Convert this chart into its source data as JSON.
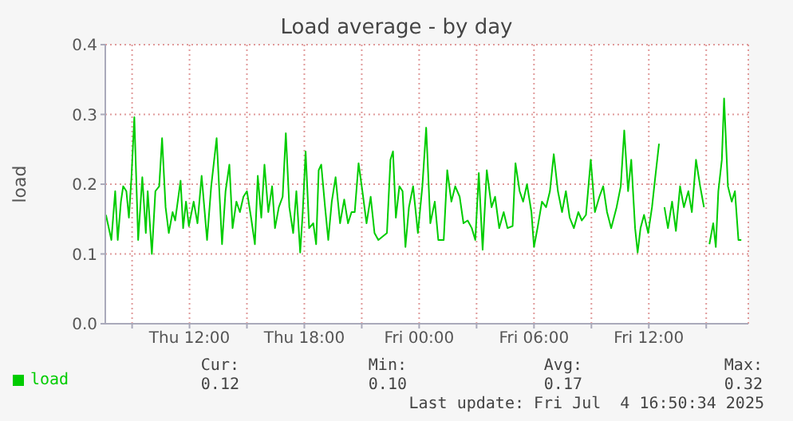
{
  "chart_data": {
    "type": "line",
    "title": "Load average - by day",
    "ylabel": "load",
    "x": [
      "2025-07-03T07:38",
      "2025-07-03T07:55",
      "2025-07-03T08:07",
      "2025-07-03T08:15",
      "2025-07-03T08:25",
      "2025-07-03T08:32",
      "2025-07-03T08:42",
      "2025-07-03T08:50",
      "2025-07-03T08:58",
      "2025-07-03T09:07",
      "2025-07-03T09:19",
      "2025-07-03T09:32",
      "2025-07-03T09:43",
      "2025-07-03T09:49",
      "2025-07-03T10:02",
      "2025-07-03T10:13",
      "2025-07-03T10:25",
      "2025-07-03T10:34",
      "2025-07-03T10:45",
      "2025-07-03T10:55",
      "2025-07-03T11:07",
      "2025-07-03T11:15",
      "2025-07-03T11:32",
      "2025-07-03T11:40",
      "2025-07-03T11:49",
      "2025-07-03T11:58",
      "2025-07-03T12:13",
      "2025-07-03T12:25",
      "2025-07-03T12:38",
      "2025-07-03T12:55",
      "2025-07-03T13:08",
      "2025-07-03T13:25",
      "2025-07-03T13:42",
      "2025-07-03T13:53",
      "2025-07-03T14:05",
      "2025-07-03T14:15",
      "2025-07-03T14:27",
      "2025-07-03T14:38",
      "2025-07-03T14:49",
      "2025-07-03T15:00",
      "2025-07-03T15:13",
      "2025-07-03T15:25",
      "2025-07-03T15:34",
      "2025-07-03T15:45",
      "2025-07-03T15:55",
      "2025-07-03T16:07",
      "2025-07-03T16:19",
      "2025-07-03T16:28",
      "2025-07-03T16:40",
      "2025-07-03T16:52",
      "2025-07-03T17:02",
      "2025-07-03T17:13",
      "2025-07-03T17:25",
      "2025-07-03T17:35",
      "2025-07-03T17:47",
      "2025-07-03T17:55",
      "2025-07-03T18:04",
      "2025-07-03T18:15",
      "2025-07-03T18:28",
      "2025-07-03T18:37",
      "2025-07-03T18:45",
      "2025-07-03T18:53",
      "2025-07-03T19:05",
      "2025-07-03T19:15",
      "2025-07-03T19:26",
      "2025-07-03T19:38",
      "2025-07-03T19:52",
      "2025-07-03T20:05",
      "2025-07-03T20:17",
      "2025-07-03T20:28",
      "2025-07-03T20:38",
      "2025-07-03T20:50",
      "2025-07-03T21:02",
      "2025-07-03T21:15",
      "2025-07-03T21:28",
      "2025-07-03T21:40",
      "2025-07-03T21:52",
      "2025-07-03T22:19",
      "2025-07-03T22:30",
      "2025-07-03T22:38",
      "2025-07-03T22:47",
      "2025-07-03T22:58",
      "2025-07-03T23:08",
      "2025-07-03T23:17",
      "2025-07-03T23:28",
      "2025-07-03T23:41",
      "2025-07-03T23:56",
      "2025-07-04T00:10",
      "2025-07-04T00:22",
      "2025-07-04T00:35",
      "2025-07-04T00:49",
      "2025-07-04T01:00",
      "2025-07-04T01:17",
      "2025-07-04T01:28",
      "2025-07-04T01:41",
      "2025-07-04T01:53",
      "2025-07-04T02:07",
      "2025-07-04T02:19",
      "2025-07-04T02:32",
      "2025-07-04T02:45",
      "2025-07-04T02:56",
      "2025-07-04T03:07",
      "2025-07-04T03:19",
      "2025-07-04T03:32",
      "2025-07-04T03:47",
      "2025-07-04T03:58",
      "2025-07-04T04:11",
      "2025-07-04T04:25",
      "2025-07-04T04:37",
      "2025-07-04T04:53",
      "2025-07-04T05:02",
      "2025-07-04T05:15",
      "2025-07-04T05:26",
      "2025-07-04T05:38",
      "2025-07-04T05:52",
      "2025-07-04T06:00",
      "2025-07-04T06:11",
      "2025-07-04T06:25",
      "2025-07-04T06:38",
      "2025-07-04T06:50",
      "2025-07-04T07:02",
      "2025-07-04T07:15",
      "2025-07-04T07:28",
      "2025-07-04T07:40",
      "2025-07-04T07:52",
      "2025-07-04T08:05",
      "2025-07-04T08:19",
      "2025-07-04T08:30",
      "2025-07-04T08:43",
      "2025-07-04T08:58",
      "2025-07-04T09:11",
      "2025-07-04T09:25",
      "2025-07-04T09:37",
      "2025-07-04T09:49",
      "2025-07-04T10:02",
      "2025-07-04T10:19",
      "2025-07-04T10:32",
      "2025-07-04T10:43",
      "2025-07-04T10:55",
      "2025-07-04T11:05",
      "2025-07-04T11:17",
      "2025-07-04T11:25",
      "2025-07-04T11:34",
      "2025-07-04T11:45",
      "2025-07-04T11:58",
      "2025-07-04T12:10",
      "2025-07-04T12:19",
      "2025-07-04T12:32",
      "2025-07-04T12:39",
      "2025-07-04T12:49",
      "2025-07-04T13:00",
      "2025-07-04T13:13",
      "2025-07-04T13:25",
      "2025-07-04T13:38",
      "2025-07-04T13:50",
      "2025-07-04T14:04",
      "2025-07-04T14:15",
      "2025-07-04T14:28",
      "2025-07-04T14:41",
      "2025-07-04T14:53",
      "2025-07-04T15:00",
      "2025-07-04T15:10",
      "2025-07-04T15:22",
      "2025-07-04T15:30",
      "2025-07-04T15:38",
      "2025-07-04T15:49",
      "2025-07-04T15:56",
      "2025-07-04T16:08",
      "2025-07-04T16:20",
      "2025-07-04T16:30",
      "2025-07-04T16:41",
      "2025-07-04T16:50"
    ],
    "series": [
      {
        "name": "load",
        "color": "#00cc00",
        "values": [
          0.156,
          0.12,
          0.19,
          0.12,
          0.175,
          0.197,
          0.19,
          0.152,
          0.21,
          0.296,
          0.12,
          0.21,
          0.13,
          0.19,
          0.1,
          0.19,
          0.197,
          0.266,
          0.167,
          0.13,
          0.16,
          0.148,
          0.205,
          0.137,
          0.175,
          0.14,
          0.175,
          0.144,
          0.212,
          0.12,
          0.197,
          0.266,
          0.114,
          0.19,
          0.228,
          0.137,
          0.175,
          0.16,
          0.182,
          0.19,
          0.152,
          0.114,
          0.212,
          0.152,
          0.228,
          0.16,
          0.197,
          0.137,
          0.167,
          0.182,
          0.273,
          0.167,
          0.13,
          0.19,
          0.102,
          0.16,
          0.247,
          0.137,
          0.144,
          0.114,
          0.22,
          0.228,
          0.167,
          0.12,
          0.175,
          0.21,
          0.144,
          0.178,
          0.144,
          0.16,
          0.16,
          0.23,
          0.19,
          0.144,
          0.182,
          0.13,
          0.12,
          0.13,
          0.235,
          0.247,
          0.152,
          0.197,
          0.19,
          0.11,
          0.167,
          0.197,
          0.13,
          0.197,
          0.281,
          0.144,
          0.175,
          0.12,
          0.12,
          0.22,
          0.175,
          0.197,
          0.182,
          0.144,
          0.148,
          0.137,
          0.12,
          0.216,
          0.106,
          0.22,
          0.167,
          0.182,
          0.137,
          0.16,
          0.137,
          0.14,
          0.23,
          0.19,
          0.175,
          0.2,
          0.16,
          0.11,
          0.137,
          0.175,
          0.167,
          0.19,
          0.243,
          0.19,
          0.16,
          0.19,
          0.152,
          0.137,
          0.16,
          0.148,
          0.156,
          0.235,
          0.16,
          0.182,
          0.197,
          0.16,
          0.137,
          0.167,
          0.197,
          0.277,
          0.19,
          0.235,
          0.137,
          0.102,
          0.137,
          0.156,
          0.13,
          0.167,
          0.205,
          0.258,
          null,
          0.167,
          0.137,
          0.175,
          0.133,
          0.197,
          0.167,
          0.19,
          0.16,
          0.235,
          0.197,
          0.167,
          null,
          0.114,
          0.144,
          0.11,
          0.19,
          0.235,
          0.323,
          0.197,
          0.175,
          0.19,
          0.12,
          0.12
        ]
      }
    ],
    "xlim": [
      "2025-07-03T07:36",
      "2025-07-04T17:12"
    ],
    "xticks": [
      {
        "value": "2025-07-03T09:00",
        "label": null
      },
      {
        "value": "2025-07-03T12:00",
        "label": "Thu 12:00"
      },
      {
        "value": "2025-07-03T15:00",
        "label": null
      },
      {
        "value": "2025-07-03T18:00",
        "label": "Thu 18:00"
      },
      {
        "value": "2025-07-03T21:00",
        "label": null
      },
      {
        "value": "2025-07-04T00:00",
        "label": "Fri 00:00"
      },
      {
        "value": "2025-07-04T03:00",
        "label": null
      },
      {
        "value": "2025-07-04T06:00",
        "label": "Fri 06:00"
      },
      {
        "value": "2025-07-04T09:00",
        "label": null
      },
      {
        "value": "2025-07-04T12:00",
        "label": "Fri 12:00"
      },
      {
        "value": "2025-07-04T15:00",
        "label": null
      }
    ],
    "ylim": [
      0,
      0.4
    ],
    "yticks": [
      {
        "value": 0,
        "label": "0.0"
      },
      {
        "value": 0.1,
        "label": "0.1"
      },
      {
        "value": 0.2,
        "label": "0.2"
      },
      {
        "value": 0.3,
        "label": "0.3"
      },
      {
        "value": 0.4,
        "label": "0.4"
      }
    ],
    "grid": true,
    "legend": "bottom left",
    "marker": "none",
    "line_style": "solid",
    "annotations": [
      "Cur:",
      "0.12",
      "Min:",
      "0.10",
      "Avg:",
      "0.17",
      "Max:",
      "0.32",
      "Last update: Fri Jul  4 16:50:34 2025"
    ]
  }
}
